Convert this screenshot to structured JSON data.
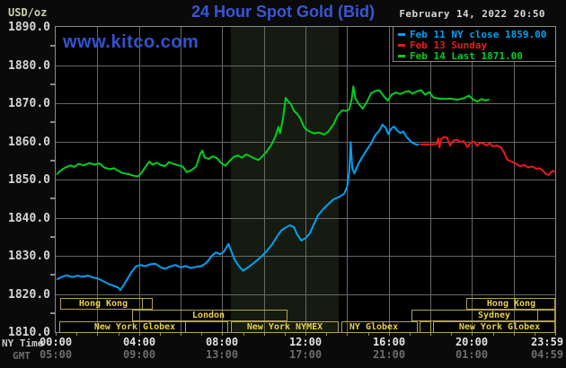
{
  "header": {
    "unit_label": "USD/oz",
    "title": "24 Hour Spot Gold (Bid)",
    "datetime": "February 14, 2022 20:50",
    "watermark": "www.kitco.com"
  },
  "legend": [
    {
      "label": "Feb 11 NY close 1859.00",
      "color": "#00a2f2"
    },
    {
      "label": "Feb 13 Sunday",
      "color": "#f01818"
    },
    {
      "label": "Feb 14 Last 1871.00",
      "color": "#00cf1e"
    }
  ],
  "axes": {
    "y_ticks": [
      "1890.0",
      "1880.0",
      "1870.0",
      "1860.0",
      "1850.0",
      "1840.0",
      "1830.0",
      "1820.0",
      "1810.0"
    ],
    "x_rows": [
      {
        "label": "NY Time",
        "ticks": [
          {
            "pos": 0,
            "text": "00:00"
          },
          {
            "pos": 4,
            "text": "04:00"
          },
          {
            "pos": 8,
            "text": "08:00"
          },
          {
            "pos": 12,
            "text": "12:00"
          },
          {
            "pos": 16,
            "text": "16:00"
          },
          {
            "pos": 20,
            "text": "20:00"
          },
          {
            "pos": 23.62,
            "text": "23:59"
          }
        ]
      },
      {
        "label": "GMT",
        "ticks": [
          {
            "pos": 0,
            "text": "05:00"
          },
          {
            "pos": 4,
            "text": "09:00"
          },
          {
            "pos": 8,
            "text": "13:00"
          },
          {
            "pos": 12,
            "text": "17:00"
          },
          {
            "pos": 16,
            "text": "21:00"
          },
          {
            "pos": 20,
            "text": "01:00"
          },
          {
            "pos": 23.62,
            "text": "04:59"
          }
        ]
      }
    ]
  },
  "sessions": {
    "rows": [
      {
        "boxes": [
          {
            "from": 0.009,
            "to": 0.194,
            "label": "Hong Kong",
            "label_at": 0.0955,
            "dividers": [
              0.171
            ]
          },
          {
            "from": 0.822,
            "to": 1.0,
            "label": "Hong Kong",
            "label_at": 0.912,
            "dividers": [
              0.917
            ]
          }
        ]
      },
      {
        "boxes": [
          {
            "from": 0.153,
            "to": 0.464,
            "label": "London",
            "label_at": 0.306,
            "dividers": []
          },
          {
            "from": 0.712,
            "to": 1.0,
            "label": "Sydney",
            "label_at": 0.878,
            "dividers": [
              0.962
            ]
          }
        ]
      },
      {
        "boxes": [
          {
            "from": 0.007,
            "to": 0.345,
            "label": "New York Globex",
            "label_at": 0.158,
            "dividers": [
              0.257
            ]
          },
          {
            "from": 0.351,
            "to": 0.567,
            "label": "New York NYMEX",
            "label_at": 0.459,
            "dividers": []
          },
          {
            "from": 0.572,
            "to": 0.725,
            "label": "NY Globex",
            "label_at": 0.637,
            "dividers": []
          },
          {
            "from": 0.728,
            "to": 0.752,
            "label": "",
            "label_at": 0.74,
            "dividers": []
          },
          {
            "from": 0.755,
            "to": 1.0,
            "label": "New York Globex",
            "label_at": 0.889,
            "dividers": []
          }
        ]
      }
    ]
  },
  "chart_data": {
    "type": "line",
    "title": "24 Hour Spot Gold (Bid)",
    "ylabel": "USD/oz",
    "ylim": [
      1810,
      1890
    ],
    "xlim_hours": [
      0,
      24
    ],
    "grid": true,
    "legend_position": "top-right",
    "nymex_band_hours": [
      8.42,
      13.6
    ],
    "series": [
      {
        "name": "Feb 11 NY close 1859.00",
        "color": "#00a2f2",
        "points": [
          [
            0.05,
            1823.8
          ],
          [
            0.3,
            1824.5
          ],
          [
            0.55,
            1824.9
          ],
          [
            0.8,
            1824.4
          ],
          [
            1.05,
            1824.8
          ],
          [
            1.3,
            1824.5
          ],
          [
            1.55,
            1824.8
          ],
          [
            1.8,
            1824.3
          ],
          [
            2.05,
            1824.0
          ],
          [
            2.3,
            1823.3
          ],
          [
            2.55,
            1822.6
          ],
          [
            2.8,
            1822.1
          ],
          [
            3.0,
            1821.7
          ],
          [
            3.1,
            1821.0
          ],
          [
            3.25,
            1822.2
          ],
          [
            3.45,
            1824.0
          ],
          [
            3.65,
            1825.8
          ],
          [
            3.85,
            1827.2
          ],
          [
            4.05,
            1827.6
          ],
          [
            4.3,
            1827.3
          ],
          [
            4.55,
            1827.8
          ],
          [
            4.8,
            1827.9
          ],
          [
            5.05,
            1827.0
          ],
          [
            5.25,
            1826.6
          ],
          [
            5.5,
            1827.2
          ],
          [
            5.75,
            1827.6
          ],
          [
            6.0,
            1827.0
          ],
          [
            6.25,
            1827.3
          ],
          [
            6.5,
            1826.8
          ],
          [
            6.75,
            1827.1
          ],
          [
            7.0,
            1827.3
          ],
          [
            7.25,
            1828.2
          ],
          [
            7.5,
            1830.0
          ],
          [
            7.7,
            1830.9
          ],
          [
            7.9,
            1830.4
          ],
          [
            8.1,
            1831.2
          ],
          [
            8.3,
            1833.1
          ],
          [
            8.45,
            1831.0
          ],
          [
            8.6,
            1829.0
          ],
          [
            8.8,
            1827.3
          ],
          [
            9.0,
            1826.1
          ],
          [
            9.2,
            1826.8
          ],
          [
            9.4,
            1827.6
          ],
          [
            9.65,
            1828.7
          ],
          [
            9.9,
            1829.9
          ],
          [
            10.15,
            1831.3
          ],
          [
            10.4,
            1833.0
          ],
          [
            10.65,
            1835.2
          ],
          [
            10.85,
            1836.7
          ],
          [
            11.05,
            1837.4
          ],
          [
            11.25,
            1838.0
          ],
          [
            11.45,
            1837.5
          ],
          [
            11.6,
            1835.6
          ],
          [
            11.8,
            1834.0
          ],
          [
            12.0,
            1834.6
          ],
          [
            12.2,
            1835.8
          ],
          [
            12.4,
            1838.2
          ],
          [
            12.6,
            1840.6
          ],
          [
            12.85,
            1842.2
          ],
          [
            13.1,
            1843.6
          ],
          [
            13.35,
            1844.8
          ],
          [
            13.6,
            1845.4
          ],
          [
            13.85,
            1846.2
          ],
          [
            14.0,
            1848.0
          ],
          [
            14.1,
            1852.0
          ],
          [
            14.17,
            1859.8
          ],
          [
            14.25,
            1853.0
          ],
          [
            14.35,
            1851.6
          ],
          [
            14.55,
            1854.2
          ],
          [
            14.75,
            1856.1
          ],
          [
            14.95,
            1857.8
          ],
          [
            15.15,
            1859.4
          ],
          [
            15.35,
            1861.6
          ],
          [
            15.55,
            1862.8
          ],
          [
            15.7,
            1864.4
          ],
          [
            15.85,
            1863.6
          ],
          [
            15.98,
            1861.9
          ],
          [
            16.1,
            1863.2
          ],
          [
            16.25,
            1863.9
          ],
          [
            16.4,
            1862.9
          ],
          [
            16.55,
            1862.2
          ],
          [
            16.7,
            1862.6
          ],
          [
            16.85,
            1861.2
          ],
          [
            17.0,
            1860.3
          ],
          [
            17.15,
            1859.6
          ],
          [
            17.3,
            1859.2
          ],
          [
            17.45,
            1859.1
          ]
        ]
      },
      {
        "name": "Feb 13 Sunday",
        "color": "#f01818",
        "points": [
          [
            17.5,
            1859.2
          ],
          [
            17.75,
            1859.2
          ],
          [
            18.0,
            1859.2
          ],
          [
            18.3,
            1859.3
          ],
          [
            18.38,
            1860.8
          ],
          [
            18.44,
            1858.4
          ],
          [
            18.52,
            1860.6
          ],
          [
            18.65,
            1861.1
          ],
          [
            18.8,
            1861.0
          ],
          [
            18.95,
            1858.9
          ],
          [
            19.1,
            1860.2
          ],
          [
            19.3,
            1860.4
          ],
          [
            19.45,
            1859.8
          ],
          [
            19.6,
            1860.1
          ],
          [
            19.78,
            1858.5
          ],
          [
            19.95,
            1859.7
          ],
          [
            20.1,
            1859.9
          ],
          [
            20.25,
            1858.8
          ],
          [
            20.4,
            1859.7
          ],
          [
            20.55,
            1859.4
          ],
          [
            20.7,
            1858.9
          ],
          [
            20.85,
            1859.5
          ],
          [
            21.0,
            1858.7
          ],
          [
            21.2,
            1858.9
          ],
          [
            21.4,
            1858.4
          ],
          [
            21.55,
            1857.0
          ],
          [
            21.7,
            1855.2
          ],
          [
            21.9,
            1854.7
          ],
          [
            22.1,
            1854.2
          ],
          [
            22.3,
            1853.5
          ],
          [
            22.5,
            1853.8
          ],
          [
            22.7,
            1853.2
          ],
          [
            22.9,
            1853.4
          ],
          [
            23.1,
            1852.8
          ],
          [
            23.25,
            1853.0
          ],
          [
            23.4,
            1852.4
          ],
          [
            23.55,
            1851.4
          ],
          [
            23.7,
            1851.2
          ],
          [
            23.8,
            1852.0
          ],
          [
            23.9,
            1852.3
          ],
          [
            23.97,
            1851.9
          ]
        ]
      },
      {
        "name": "Feb 14 Last 1871.00",
        "color": "#00cf1e",
        "points": [
          [
            0.05,
            1851.3
          ],
          [
            0.2,
            1852.2
          ],
          [
            0.45,
            1853.1
          ],
          [
            0.7,
            1853.7
          ],
          [
            0.9,
            1853.3
          ],
          [
            1.1,
            1854.1
          ],
          [
            1.35,
            1853.7
          ],
          [
            1.6,
            1854.3
          ],
          [
            1.85,
            1853.9
          ],
          [
            2.1,
            1854.2
          ],
          [
            2.35,
            1853.1
          ],
          [
            2.6,
            1852.7
          ],
          [
            2.8,
            1853.0
          ],
          [
            3.0,
            1852.3
          ],
          [
            3.2,
            1851.7
          ],
          [
            3.5,
            1851.4
          ],
          [
            3.75,
            1851.0
          ],
          [
            3.95,
            1850.8
          ],
          [
            4.1,
            1851.6
          ],
          [
            4.3,
            1853.2
          ],
          [
            4.5,
            1854.7
          ],
          [
            4.65,
            1853.9
          ],
          [
            4.85,
            1854.4
          ],
          [
            5.05,
            1853.8
          ],
          [
            5.25,
            1853.5
          ],
          [
            5.45,
            1854.6
          ],
          [
            5.65,
            1854.1
          ],
          [
            5.85,
            1853.8
          ],
          [
            6.1,
            1853.4
          ],
          [
            6.3,
            1851.9
          ],
          [
            6.5,
            1852.4
          ],
          [
            6.75,
            1853.4
          ],
          [
            6.95,
            1856.8
          ],
          [
            7.05,
            1857.6
          ],
          [
            7.15,
            1855.8
          ],
          [
            7.35,
            1855.4
          ],
          [
            7.55,
            1856.1
          ],
          [
            7.75,
            1855.6
          ],
          [
            7.95,
            1854.3
          ],
          [
            8.15,
            1853.6
          ],
          [
            8.35,
            1854.8
          ],
          [
            8.55,
            1855.9
          ],
          [
            8.75,
            1856.3
          ],
          [
            8.95,
            1855.7
          ],
          [
            9.15,
            1856.6
          ],
          [
            9.35,
            1856.1
          ],
          [
            9.55,
            1855.5
          ],
          [
            9.75,
            1855.1
          ],
          [
            9.95,
            1856.2
          ],
          [
            10.15,
            1857.4
          ],
          [
            10.35,
            1859.0
          ],
          [
            10.55,
            1861.2
          ],
          [
            10.7,
            1863.8
          ],
          [
            10.78,
            1862.1
          ],
          [
            10.92,
            1866.0
          ],
          [
            11.05,
            1871.4
          ],
          [
            11.15,
            1870.6
          ],
          [
            11.3,
            1869.8
          ],
          [
            11.45,
            1868.0
          ],
          [
            11.6,
            1867.2
          ],
          [
            11.75,
            1866.1
          ],
          [
            11.95,
            1863.6
          ],
          [
            12.15,
            1862.7
          ],
          [
            12.4,
            1862.1
          ],
          [
            12.65,
            1862.3
          ],
          [
            12.9,
            1861.8
          ],
          [
            13.1,
            1862.6
          ],
          [
            13.35,
            1864.5
          ],
          [
            13.55,
            1866.8
          ],
          [
            13.75,
            1868.1
          ],
          [
            13.95,
            1868.0
          ],
          [
            14.1,
            1868.4
          ],
          [
            14.22,
            1871.0
          ],
          [
            14.3,
            1874.4
          ],
          [
            14.4,
            1871.2
          ],
          [
            14.55,
            1869.9
          ],
          [
            14.75,
            1868.6
          ],
          [
            14.95,
            1870.3
          ],
          [
            15.15,
            1872.6
          ],
          [
            15.35,
            1873.2
          ],
          [
            15.55,
            1873.4
          ],
          [
            15.75,
            1871.9
          ],
          [
            15.95,
            1870.7
          ],
          [
            16.15,
            1872.3
          ],
          [
            16.35,
            1872.8
          ],
          [
            16.55,
            1872.4
          ],
          [
            16.75,
            1872.9
          ],
          [
            16.95,
            1873.2
          ],
          [
            17.15,
            1872.5
          ],
          [
            17.35,
            1873.1
          ],
          [
            17.55,
            1873.4
          ],
          [
            17.75,
            1872.2
          ],
          [
            17.95,
            1872.9
          ],
          [
            18.15,
            1871.5
          ],
          [
            18.4,
            1871.2
          ],
          [
            18.7,
            1871.1
          ],
          [
            19.0,
            1871.2
          ],
          [
            19.3,
            1870.9
          ],
          [
            19.6,
            1871.3
          ],
          [
            19.85,
            1872.0
          ],
          [
            20.05,
            1871.0
          ],
          [
            20.25,
            1870.4
          ],
          [
            20.45,
            1871.1
          ],
          [
            20.65,
            1870.7
          ],
          [
            20.83,
            1871.0
          ]
        ]
      }
    ]
  }
}
